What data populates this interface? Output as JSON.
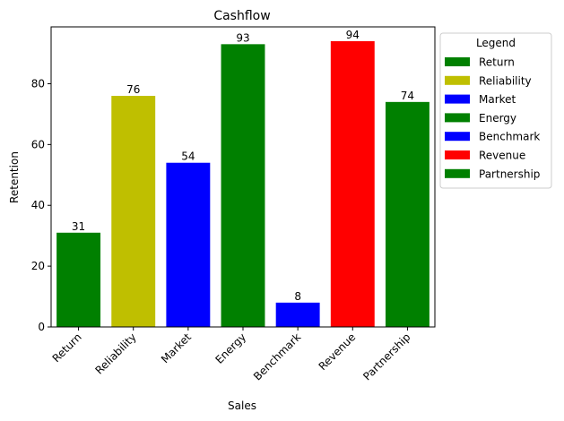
{
  "chart_data": {
    "type": "bar",
    "title": "Cashflow",
    "xlabel": "Sales",
    "ylabel": "Retention",
    "ylim": [
      0,
      98.7
    ],
    "yticks": [
      0,
      20,
      40,
      60,
      80
    ],
    "grid": false,
    "categories": [
      "Return",
      "Reliability",
      "Market",
      "Energy",
      "Benchmark",
      "Revenue",
      "Partnership"
    ],
    "values": [
      31,
      76,
      54,
      93,
      8,
      94,
      74
    ],
    "colors": [
      "#008000",
      "#bfbf00",
      "#0000ff",
      "#008000",
      "#0000ff",
      "#ff0000",
      "#008000"
    ],
    "legend": {
      "title": "Legend",
      "placement": "outside-right-top",
      "entries": [
        "Return",
        "Reliability",
        "Market",
        "Energy",
        "Benchmark",
        "Revenue",
        "Partnership"
      ]
    }
  }
}
